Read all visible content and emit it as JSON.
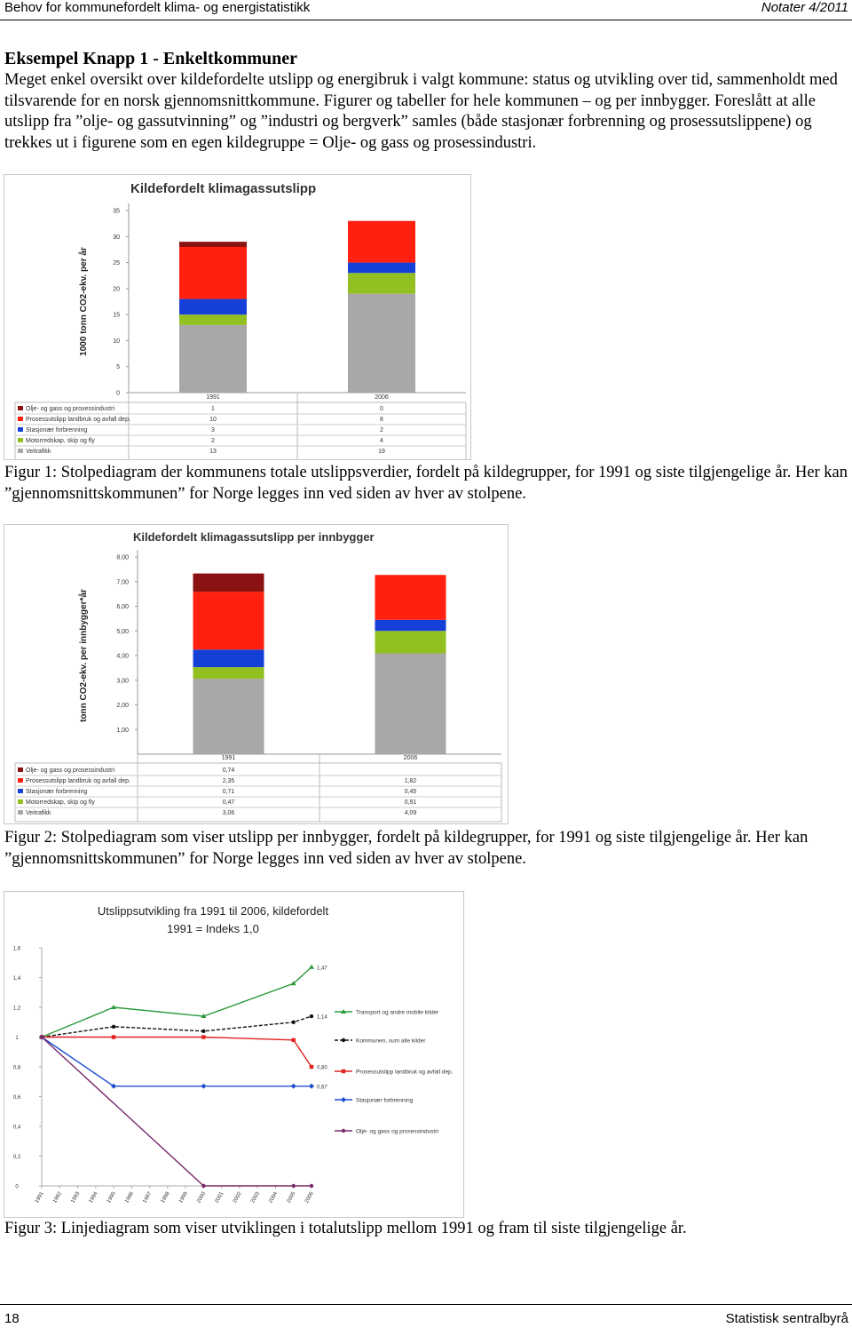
{
  "header": {
    "title": "Behov for kommunefordelt klima- og energistatistikk",
    "publication": "Notater 4/2011"
  },
  "heading": "Eksempel Knapp 1 - Enkeltkommuner",
  "paragraph": "Meget enkel oversikt over kildefordelte utslipp og energibruk i valgt kommune: status og utvikling over tid, sammenholdt med tilsvarende for en norsk gjennomsnittkommune. Figurer og tabeller for hele kommunen – og per innbygger. Foreslått at alle utslipp fra ”olje- og gassutvinning” og ”industri og bergverk” samles (både stasjonær forbrenning og prosessutslippene) og trekkes ut i figurene som en egen kildegruppe = Olje- og gass og prosessindustri.",
  "captions": [
    "Figur 1: Stolpediagram der kommunens totale utslippsverdier, fordelt på kildegrupper, for 1991 og siste tilgjengelige år. Her kan ”gjennomsnittskommunen” for Norge legges inn ved siden av hver av stolpene.",
    "Figur 2: Stolpediagram som viser utslipp per innbygger, fordelt på kildegrupper, for 1991 og siste tilgjengelige år. Her kan ”gjennomsnittskommunen” for Norge legges inn ved siden av hver av stolpene.",
    "Figur 3: Linjediagram som viser utviklingen i totalutslipp mellom 1991 og fram til siste tilgjengelige år."
  ],
  "chart_data": [
    {
      "type": "stacked_bar",
      "title": "Kildefordelt klimagassutslipp",
      "y_label": "1000 tonn CO2-ekv. per år",
      "categories": [
        "1991",
        "2006"
      ],
      "ylim": [
        0,
        35
      ],
      "yticks": [
        0,
        5,
        10,
        15,
        20,
        25,
        30,
        35
      ],
      "series": [
        {
          "name": "Olje- og gass og prosessindustri",
          "color": "#8b1212",
          "values": [
            1,
            0
          ]
        },
        {
          "name": "Prosessutslipp landbruk og avfall dep.",
          "color": "#ff2010",
          "values": [
            10,
            8
          ]
        },
        {
          "name": "Stasjonær forbrenning",
          "color": "#1540d8",
          "values": [
            3,
            2
          ]
        },
        {
          "name": "Motorredskap, skip og fly",
          "color": "#92c020",
          "values": [
            2,
            4
          ]
        },
        {
          "name": "Veitrafikk",
          "color": "#a8a8a8",
          "values": [
            13,
            19
          ]
        }
      ]
    },
    {
      "type": "stacked_bar",
      "title": "Kildefordelt klimagassutslipp per innbygger",
      "y_label": "tonn CO2-ekv. per innbygger*år",
      "categories": [
        "1991",
        "2006"
      ],
      "ylim": [
        0,
        8
      ],
      "yticks": [
        {
          "value": 1,
          "label": "1,00"
        },
        {
          "value": 2,
          "label": "2,00"
        },
        {
          "value": 3,
          "label": "3,00"
        },
        {
          "value": 4,
          "label": "4,00"
        },
        {
          "value": 5,
          "label": "5,00"
        },
        {
          "value": 6,
          "label": "6,00"
        },
        {
          "value": 7,
          "label": "7,00"
        },
        {
          "value": 8,
          "label": "8,00"
        }
      ],
      "series": [
        {
          "name": "Olje- og gass og prosessindustri",
          "color": "#8b1212",
          "values": [
            0.74,
            null
          ],
          "value_labels": [
            "0,74",
            null
          ]
        },
        {
          "name": "Prosessutslipp landbruk og avfall dep.",
          "color": "#ff2010",
          "values": [
            2.35,
            1.82
          ],
          "value_labels": [
            "2,35",
            "1,82"
          ]
        },
        {
          "name": "Stasjonær forbrenning",
          "color": "#1540d8",
          "values": [
            0.71,
            0.45
          ],
          "value_labels": [
            "0,71",
            "0,45"
          ]
        },
        {
          "name": "Motorredskap, skip og fly",
          "color": "#92c020",
          "values": [
            0.47,
            0.91
          ],
          "value_labels": [
            "0,47",
            "0,91"
          ]
        },
        {
          "name": "Veitrafikk",
          "color": "#a8a8a8",
          "values": [
            3.06,
            4.09
          ],
          "value_labels": [
            "3,06",
            "4,09"
          ]
        }
      ]
    },
    {
      "type": "line",
      "title": "Utslippsutvikling fra 1991 til 2006, kildefordelt",
      "subtitle": "1991 = Indeks 1,0",
      "xlim": [
        1991,
        2006
      ],
      "xticks": [
        1991,
        1992,
        1993,
        1994,
        1995,
        1996,
        1997,
        1998,
        1999,
        2000,
        2001,
        2002,
        2003,
        2004,
        2005,
        2006
      ],
      "ylim": [
        0,
        1.6
      ],
      "yticks": [
        0,
        {
          "value": 0.2,
          "label": "0,2"
        },
        {
          "value": 0.4,
          "label": "0,4"
        },
        {
          "value": 0.6,
          "label": "0,6"
        },
        {
          "value": 0.8,
          "label": "0,8"
        },
        1,
        {
          "value": 1.2,
          "label": "1,2"
        },
        {
          "value": 1.4,
          "label": "1,4"
        },
        {
          "value": 1.6,
          "label": "1,6"
        }
      ],
      "series": [
        {
          "name": "Transport og andre mobile kilder",
          "color": "#2a9a3a",
          "marker": "triangle",
          "line_style": "solid",
          "x": [
            1991,
            1995,
            2000,
            2005,
            2006
          ],
          "values": [
            1,
            1.2,
            1.14,
            1.36,
            1.47
          ],
          "value_labels": [
            null,
            null,
            null,
            null,
            "1,47"
          ]
        },
        {
          "name": "Kommunen, sum alle kilder",
          "color": "#111111",
          "marker": "circle",
          "line_style": "dashed",
          "x": [
            1991,
            1995,
            2000,
            2005,
            2006
          ],
          "values": [
            1,
            1.07,
            1.04,
            1.1,
            1.14
          ],
          "value_labels": [
            null,
            null,
            null,
            null,
            "1,14"
          ]
        },
        {
          "name": "Prosessutslipp landbruk og avfall dep.",
          "color": "#e02020",
          "marker": "square",
          "line_style": "solid",
          "x": [
            1991,
            1995,
            2000,
            2005,
            2006
          ],
          "values": [
            1,
            1,
            1,
            0.98,
            0.8
          ],
          "value_labels": [
            null,
            null,
            null,
            null,
            "0,80"
          ]
        },
        {
          "name": "Stasjonær forbrenning",
          "color": "#2050d0",
          "marker": "diamond",
          "line_style": "solid",
          "x": [
            1991,
            1995,
            2000,
            2005,
            2006
          ],
          "values": [
            1,
            0.67,
            0.67,
            0.67,
            0.67
          ],
          "value_labels": [
            null,
            null,
            null,
            null,
            "0,67"
          ]
        },
        {
          "name": "Olje- og gass og prosessindustri",
          "color": "#7a2a6a",
          "marker": "circle",
          "line_style": "solid",
          "x": [
            1991,
            2000,
            2005,
            2006
          ],
          "values": [
            1,
            0,
            0,
            0
          ]
        }
      ]
    }
  ],
  "footer": {
    "page": "18",
    "publisher": "Statistisk sentralbyrå"
  }
}
